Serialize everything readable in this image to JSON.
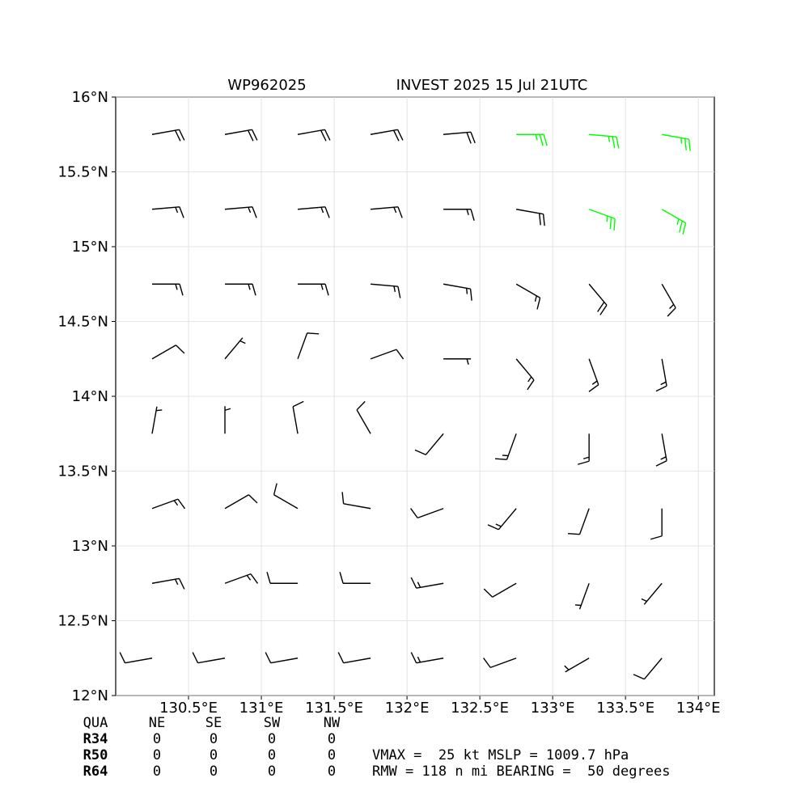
{
  "chart_data": {
    "type": "barbs",
    "title_left": "WP962025",
    "title_right": "INVEST 2025 15 Jul 21UTC",
    "xlim": [
      130.0,
      134.11
    ],
    "ylim": [
      12,
      16
    ],
    "xticks": [
      {
        "value": 130.5,
        "label": "130.5°E"
      },
      {
        "value": 131,
        "label": "131°E"
      },
      {
        "value": 131.5,
        "label": "131.5°E"
      },
      {
        "value": 132,
        "label": "132°E"
      },
      {
        "value": 132.5,
        "label": "132.5°E"
      },
      {
        "value": 133,
        "label": "133°E"
      },
      {
        "value": 133.5,
        "label": "133.5°E"
      },
      {
        "value": 134,
        "label": "134°E"
      }
    ],
    "yticks": [
      {
        "value": 12,
        "label": "12°N"
      },
      {
        "value": 12.5,
        "label": "12.5°N"
      },
      {
        "value": 13,
        "label": "13°N"
      },
      {
        "value": 13.5,
        "label": "13.5°N"
      },
      {
        "value": 14,
        "label": "14°N"
      },
      {
        "value": 14.5,
        "label": "14.5°N"
      },
      {
        "value": 15,
        "label": "15°N"
      },
      {
        "value": 15.5,
        "label": "15.5°N"
      },
      {
        "value": 16,
        "label": "16°N"
      }
    ],
    "grid": true,
    "color": "#000000",
    "highlight_color": "#00ff00",
    "highlight_min_speed": 25,
    "lon": [
      130.25,
      130.75,
      131.25,
      131.75,
      132.25,
      132.75,
      133.25,
      133.75
    ],
    "lat": [
      15.75,
      15.25,
      14.75,
      14.25,
      13.75,
      13.25,
      12.75,
      12.25
    ],
    "direction": [
      [
        80,
        80,
        80,
        80,
        85,
        90,
        95,
        100
      ],
      [
        85,
        85,
        85,
        85,
        90,
        100,
        110,
        120
      ],
      [
        90,
        90,
        90,
        95,
        100,
        120,
        140,
        150
      ],
      [
        60,
        40,
        20,
        70,
        90,
        140,
        160,
        170
      ],
      [
        10,
        0,
        350,
        330,
        220,
        200,
        180,
        170
      ],
      [
        70,
        60,
        300,
        280,
        250,
        220,
        200,
        180
      ],
      [
        80,
        70,
        270,
        270,
        260,
        240,
        200,
        220
      ],
      [
        260,
        260,
        260,
        260,
        260,
        250,
        240,
        220
      ]
    ],
    "speed": [
      [
        20,
        20,
        20,
        20,
        22,
        26,
        28,
        28
      ],
      [
        18,
        18,
        18,
        18,
        18,
        22,
        26,
        26
      ],
      [
        15,
        15,
        15,
        15,
        15,
        18,
        22,
        15
      ],
      [
        10,
        8,
        10,
        10,
        8,
        15,
        15,
        15
      ],
      [
        8,
        8,
        10,
        10,
        10,
        15,
        15,
        15
      ],
      [
        15,
        12,
        10,
        10,
        12,
        15,
        10,
        12
      ],
      [
        15,
        15,
        12,
        12,
        15,
        12,
        5,
        8
      ],
      [
        12,
        12,
        12,
        12,
        15,
        10,
        8,
        10
      ]
    ],
    "radii_table": {
      "header": [
        "QUA",
        "NE",
        "SE",
        "SW",
        "NW"
      ],
      "rows": [
        [
          "R34",
          "0",
          "0",
          "0",
          "0"
        ],
        [
          "R50",
          "0",
          "0",
          "0",
          "0"
        ],
        [
          "R64",
          "0",
          "0",
          "0",
          "0"
        ]
      ]
    },
    "info_lines": [
      "VMAX =  25 kt MSLP = 1009.7 hPa",
      "RMW = 118 n mi BEARING =  50 degrees"
    ]
  }
}
